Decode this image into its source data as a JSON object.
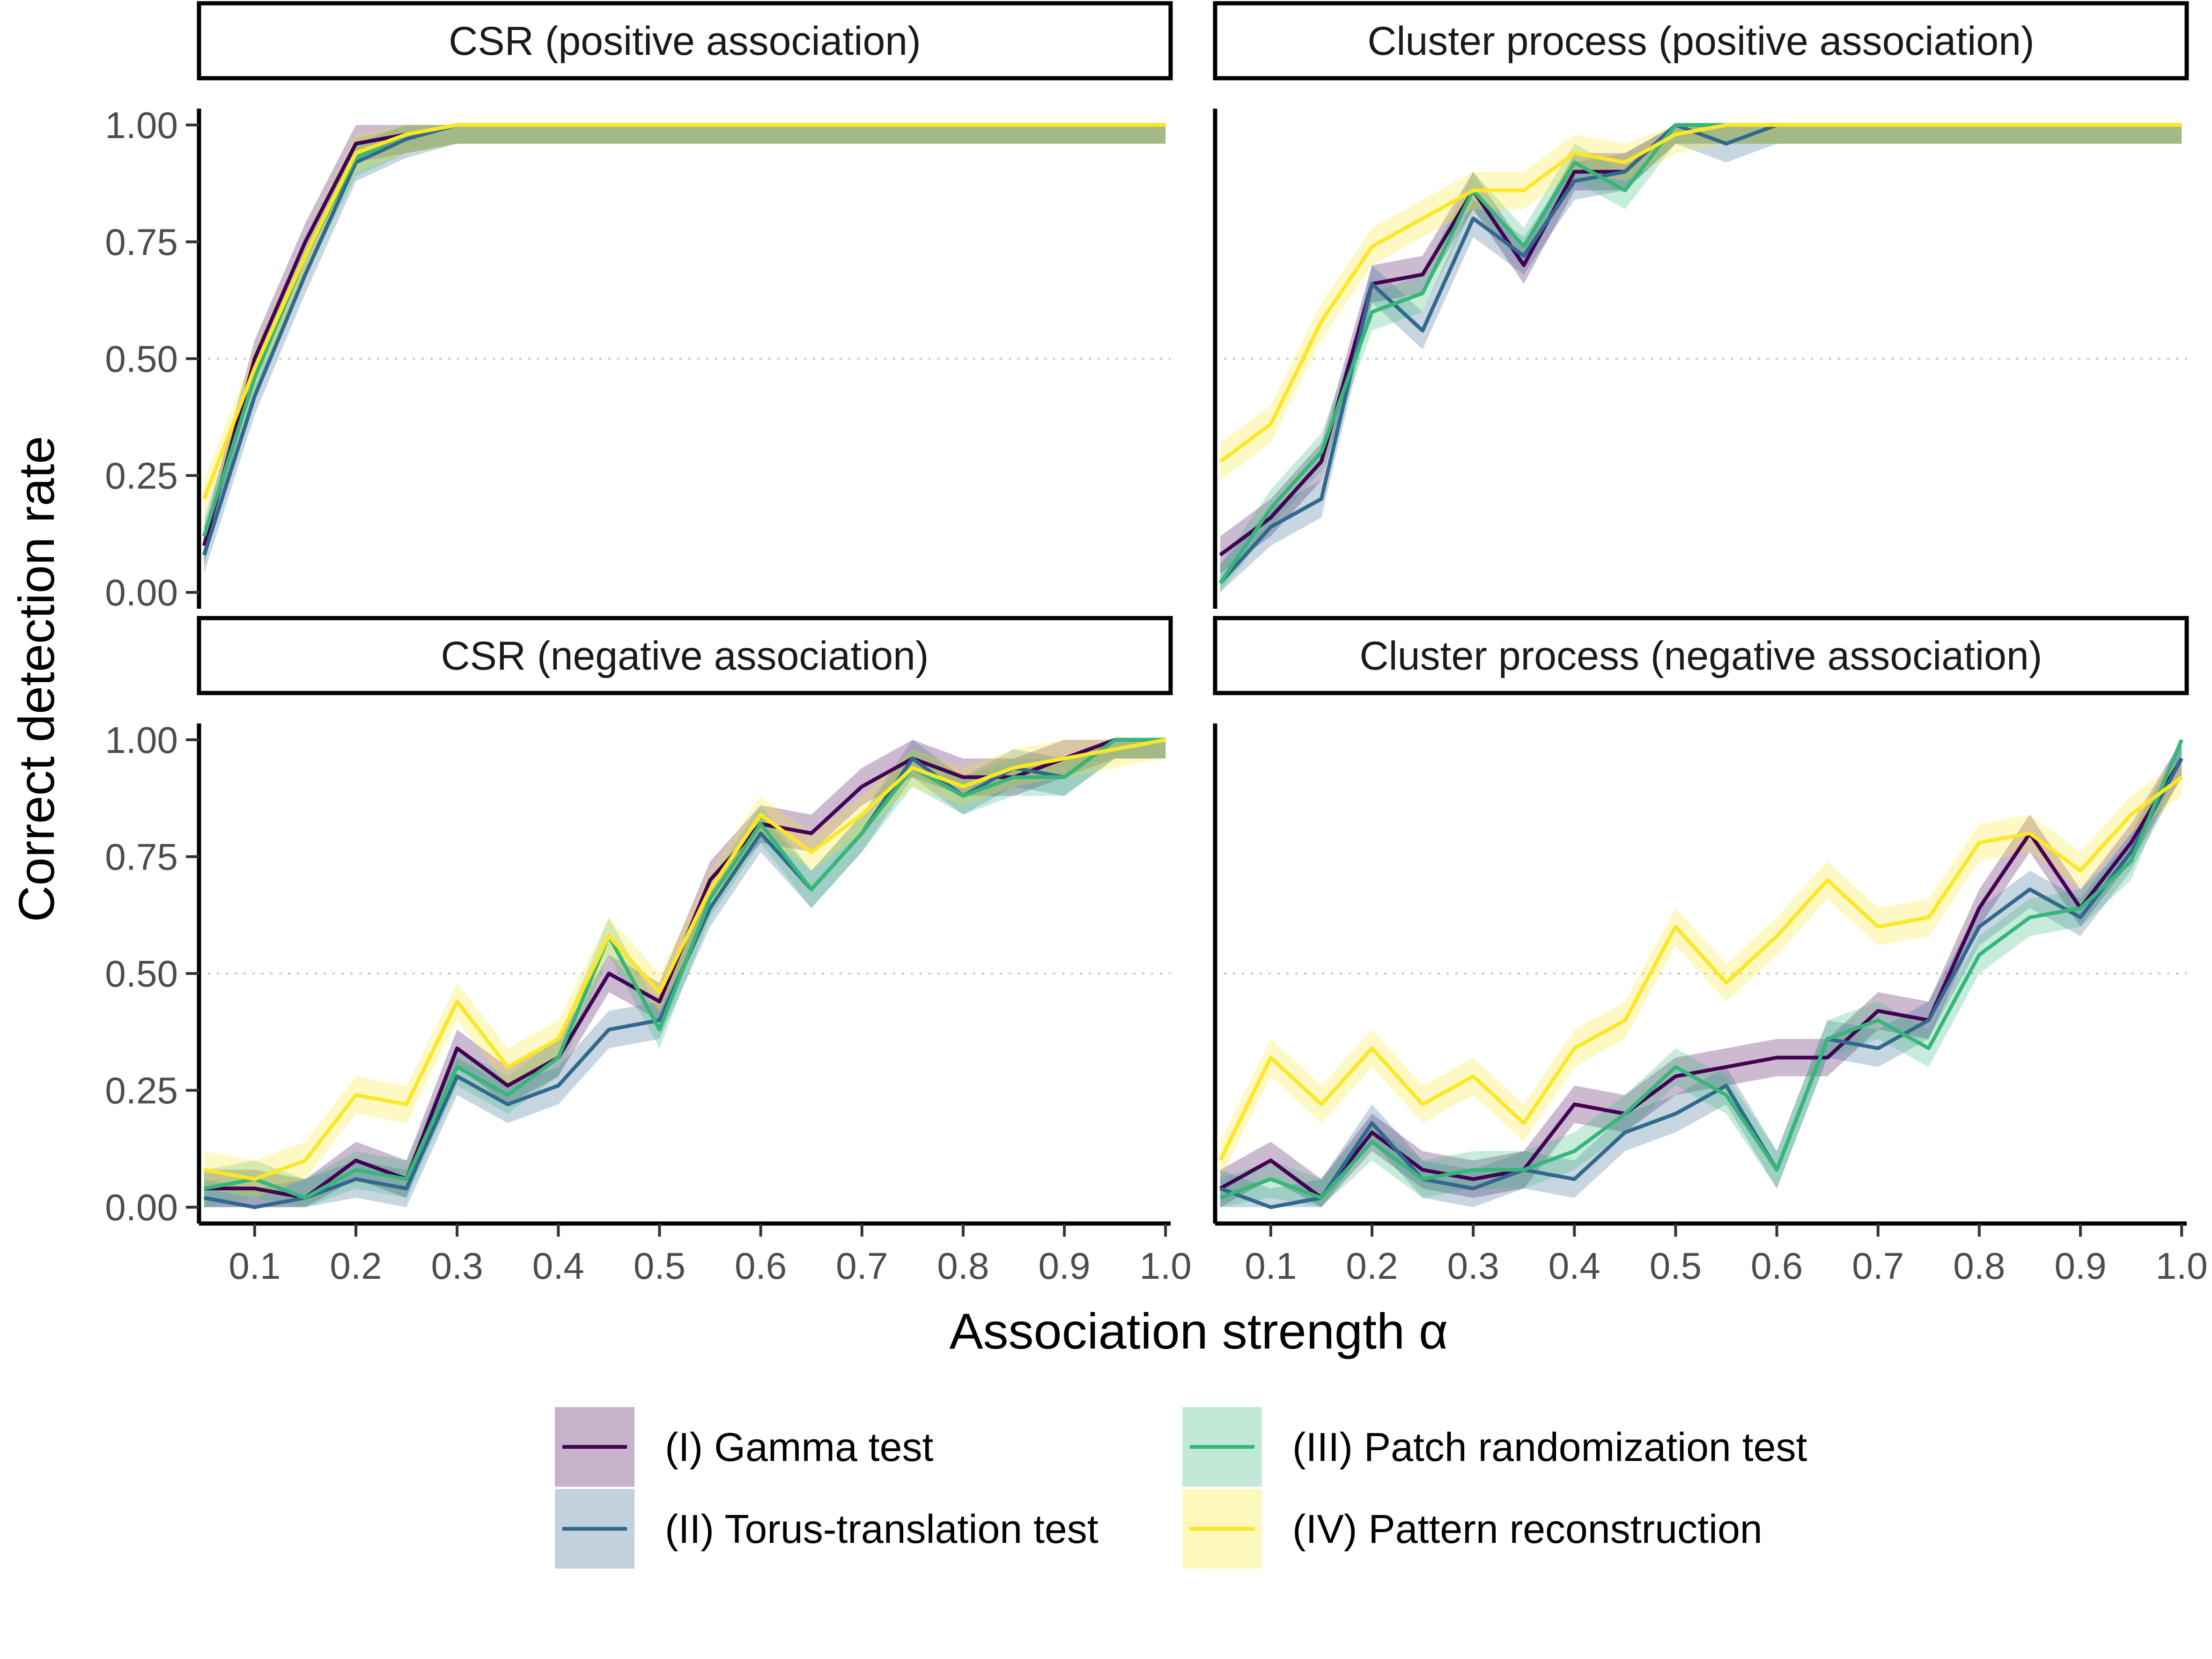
{
  "chart_data": {
    "type": "line",
    "title": "",
    "xlabel": "Association strength α",
    "ylabel": "Correct detection rate",
    "xlim": [
      0.05,
      1.0
    ],
    "ylim": [
      0,
      1
    ],
    "x_ticks": [
      "0.1",
      "0.2",
      "0.3",
      "0.4",
      "0.5",
      "0.6",
      "0.7",
      "0.8",
      "0.9",
      "1.0"
    ],
    "y_ticks": [
      "0.00",
      "0.25",
      "0.50",
      "0.75",
      "1.00"
    ],
    "reference_line": 0.5,
    "grid": false,
    "legend_position": "bottom",
    "x": [
      0.05,
      0.1,
      0.15,
      0.2,
      0.25,
      0.3,
      0.35,
      0.4,
      0.45,
      0.5,
      0.55,
      0.6,
      0.65,
      0.7,
      0.75,
      0.8,
      0.85,
      0.9,
      0.95,
      1.0
    ],
    "legend": [
      {
        "label": "(I) Gamma test",
        "color": "#440154"
      },
      {
        "label": "(II) Torus-translation test",
        "color": "#31688e"
      },
      {
        "label": "(III) Patch randomization test",
        "color": "#35b779"
      },
      {
        "label": "(IV) Pattern reconstruction",
        "color": "#fde725"
      }
    ],
    "band_halfwidth": 0.04,
    "panels": [
      {
        "strip": "CSR (positive association)",
        "series": [
          [
            0.1,
            0.5,
            0.75,
            0.96,
            0.98,
            1.0,
            1.0,
            1.0,
            1.0,
            1.0,
            1.0,
            1.0,
            1.0,
            1.0,
            1.0,
            1.0,
            1.0,
            1.0,
            1.0,
            1.0
          ],
          [
            0.08,
            0.42,
            0.68,
            0.92,
            0.97,
            1.0,
            1.0,
            1.0,
            1.0,
            1.0,
            1.0,
            1.0,
            1.0,
            1.0,
            1.0,
            1.0,
            1.0,
            1.0,
            1.0,
            1.0
          ],
          [
            0.12,
            0.46,
            0.72,
            0.93,
            0.98,
            1.0,
            1.0,
            1.0,
            1.0,
            1.0,
            1.0,
            1.0,
            1.0,
            1.0,
            1.0,
            1.0,
            1.0,
            1.0,
            1.0,
            1.0
          ],
          [
            0.2,
            0.48,
            0.72,
            0.94,
            0.98,
            1.0,
            1.0,
            1.0,
            1.0,
            1.0,
            1.0,
            1.0,
            1.0,
            1.0,
            1.0,
            1.0,
            1.0,
            1.0,
            1.0,
            1.0
          ]
        ]
      },
      {
        "strip": "Cluster process (positive association)",
        "series": [
          [
            0.08,
            0.16,
            0.28,
            0.66,
            0.68,
            0.86,
            0.7,
            0.9,
            0.9,
            1.0,
            1.0,
            1.0,
            1.0,
            1.0,
            1.0,
            1.0,
            1.0,
            1.0,
            1.0,
            1.0
          ],
          [
            0.02,
            0.14,
            0.2,
            0.66,
            0.56,
            0.8,
            0.72,
            0.88,
            0.9,
            1.0,
            0.96,
            1.0,
            1.0,
            1.0,
            1.0,
            1.0,
            1.0,
            1.0,
            1.0,
            1.0
          ],
          [
            0.02,
            0.18,
            0.3,
            0.6,
            0.64,
            0.86,
            0.74,
            0.92,
            0.86,
            1.0,
            1.0,
            1.0,
            1.0,
            1.0,
            1.0,
            1.0,
            1.0,
            1.0,
            1.0,
            1.0
          ],
          [
            0.28,
            0.36,
            0.58,
            0.74,
            0.8,
            0.86,
            0.86,
            0.94,
            0.92,
            0.98,
            1.0,
            1.0,
            1.0,
            1.0,
            1.0,
            1.0,
            1.0,
            1.0,
            1.0,
            1.0
          ]
        ]
      },
      {
        "strip": "CSR (negative association)",
        "series": [
          [
            0.04,
            0.04,
            0.02,
            0.1,
            0.06,
            0.34,
            0.26,
            0.32,
            0.5,
            0.44,
            0.7,
            0.82,
            0.8,
            0.9,
            0.96,
            0.92,
            0.92,
            0.96,
            1.0,
            1.0
          ],
          [
            0.02,
            0.0,
            0.02,
            0.06,
            0.04,
            0.28,
            0.22,
            0.26,
            0.38,
            0.4,
            0.64,
            0.8,
            0.68,
            0.8,
            0.96,
            0.88,
            0.94,
            0.92,
            1.0,
            1.0
          ],
          [
            0.04,
            0.06,
            0.02,
            0.08,
            0.06,
            0.3,
            0.24,
            0.32,
            0.58,
            0.38,
            0.66,
            0.82,
            0.68,
            0.8,
            0.94,
            0.88,
            0.92,
            0.92,
            1.0,
            1.0
          ],
          [
            0.08,
            0.06,
            0.1,
            0.24,
            0.22,
            0.44,
            0.3,
            0.36,
            0.58,
            0.46,
            0.68,
            0.84,
            0.76,
            0.84,
            0.94,
            0.9,
            0.94,
            0.96,
            0.98,
            1.0
          ]
        ]
      },
      {
        "strip": "Cluster process (negative association)",
        "series": [
          [
            0.04,
            0.1,
            0.02,
            0.16,
            0.08,
            0.06,
            0.08,
            0.22,
            0.2,
            0.28,
            0.3,
            0.32,
            0.32,
            0.42,
            0.4,
            0.64,
            0.8,
            0.64,
            0.78,
            0.96
          ],
          [
            0.04,
            0.0,
            0.02,
            0.18,
            0.06,
            0.04,
            0.08,
            0.06,
            0.16,
            0.2,
            0.26,
            0.08,
            0.36,
            0.34,
            0.4,
            0.6,
            0.68,
            0.62,
            0.76,
            0.96
          ],
          [
            0.02,
            0.06,
            0.02,
            0.14,
            0.06,
            0.08,
            0.08,
            0.12,
            0.2,
            0.3,
            0.24,
            0.08,
            0.36,
            0.4,
            0.34,
            0.54,
            0.62,
            0.64,
            0.74,
            1.0
          ],
          [
            0.1,
            0.32,
            0.22,
            0.34,
            0.22,
            0.28,
            0.18,
            0.34,
            0.4,
            0.6,
            0.48,
            0.58,
            0.7,
            0.6,
            0.62,
            0.78,
            0.8,
            0.72,
            0.84,
            0.92
          ]
        ]
      }
    ]
  }
}
